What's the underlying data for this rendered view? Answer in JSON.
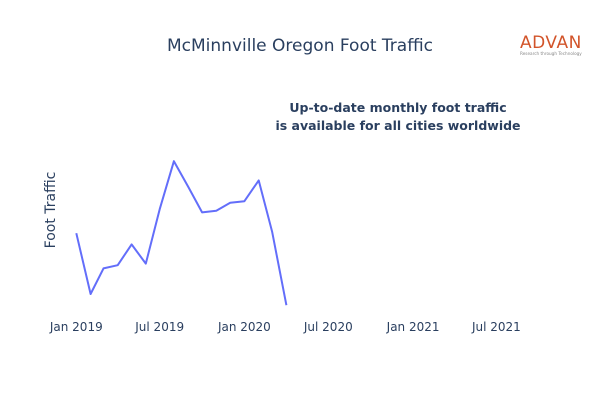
{
  "logo": {
    "name": "ADVAN",
    "tagline": "Research through Technology",
    "color": "#d2542a"
  },
  "chart_data": {
    "type": "line",
    "title": "McMinnville Oregon Foot Traffic",
    "annotation": [
      "Up-to-date monthly foot traffic",
      "is available for all cities worldwide"
    ],
    "xlabel": "",
    "ylabel": "Foot Traffic",
    "x_ticks": [
      "Jan 2019",
      "Jul 2019",
      "Jan 2020",
      "Jul 2020",
      "Jan 2021",
      "Jul 2021"
    ],
    "x_tick_dates": [
      "2019-01-01",
      "2019-07-01",
      "2020-01-01",
      "2020-07-01",
      "2021-01-01",
      "2021-07-01"
    ],
    "x_range": [
      "2018-12-01",
      "2021-09-01"
    ],
    "y_range": [
      0,
      100
    ],
    "grid": false,
    "line_color": "#636efa",
    "series": [
      {
        "x": [
          "2019-01-01",
          "2019-02-01",
          "2019-03-01",
          "2019-04-01",
          "2019-05-01",
          "2019-06-01",
          "2019-07-01",
          "2019-08-01",
          "2019-09-01",
          "2019-10-01",
          "2019-11-01",
          "2019-12-01",
          "2020-01-01",
          "2020-02-01",
          "2020-03-01",
          "2020-04-01"
        ],
        "y": [
          48,
          10,
          26,
          28,
          41,
          29,
          63,
          93,
          77,
          61,
          62,
          67,
          68,
          81,
          49,
          3
        ]
      }
    ]
  }
}
